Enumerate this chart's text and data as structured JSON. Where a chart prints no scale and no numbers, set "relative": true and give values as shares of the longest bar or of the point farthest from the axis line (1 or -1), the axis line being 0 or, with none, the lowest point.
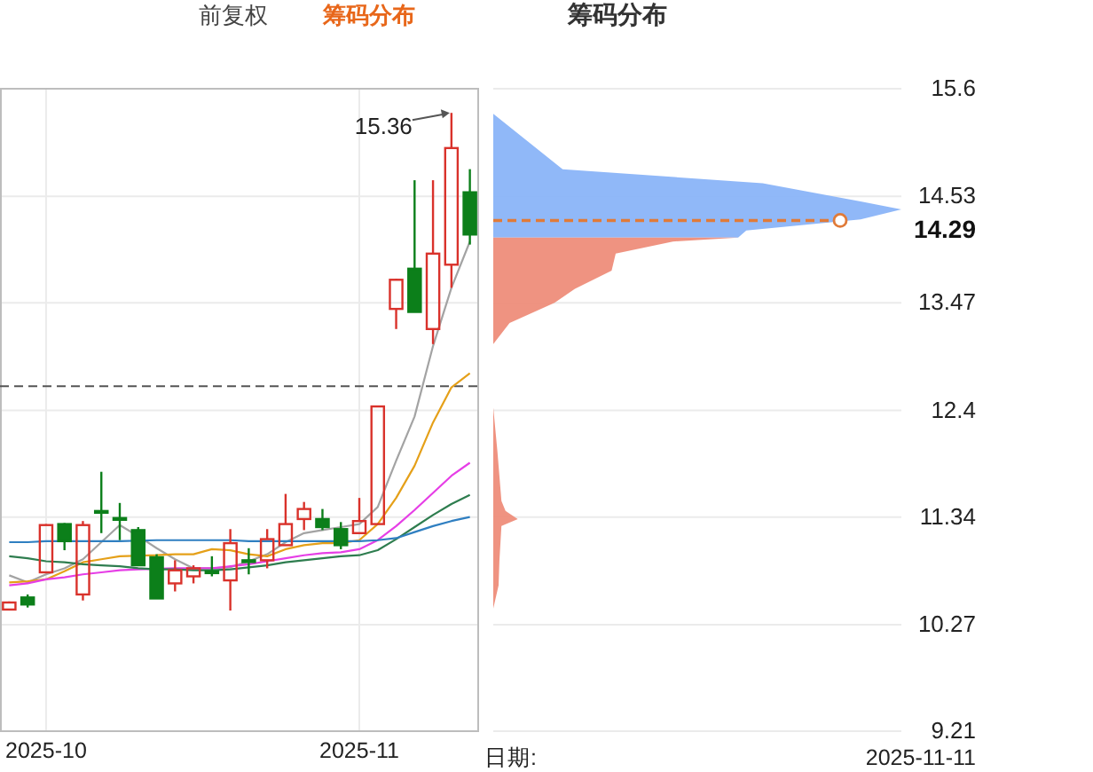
{
  "chart_data": [
    {
      "type": "candlestick",
      "categories": [
        null,
        null,
        "2025-10",
        null,
        null,
        null,
        null,
        null,
        null,
        null,
        null,
        null,
        null,
        null,
        null,
        null,
        null,
        null,
        null,
        "2025-11",
        null,
        null,
        null,
        null,
        null,
        null
      ],
      "ohlc": [
        [
          10.42,
          10.5,
          10.41,
          10.49
        ],
        [
          10.54,
          10.57,
          10.44,
          10.47
        ],
        [
          10.79,
          11.27,
          10.78,
          11.26
        ],
        [
          11.27,
          11.28,
          11.01,
          11.1
        ],
        [
          10.57,
          11.3,
          10.51,
          11.26
        ],
        [
          11.4,
          11.79,
          11.18,
          11.39
        ],
        [
          11.33,
          11.48,
          11.11,
          11.32
        ],
        [
          11.21,
          11.24,
          10.86,
          10.86
        ],
        [
          10.94,
          10.97,
          10.53,
          10.53
        ],
        [
          10.68,
          10.91,
          10.6,
          10.81
        ],
        [
          10.75,
          10.86,
          10.68,
          10.83
        ],
        [
          10.8,
          10.95,
          10.75,
          10.79
        ],
        [
          10.71,
          11.22,
          10.41,
          11.08
        ],
        [
          10.91,
          11.03,
          10.77,
          10.9
        ],
        [
          10.91,
          11.22,
          10.83,
          11.12
        ],
        [
          11.06,
          11.57,
          11.06,
          11.27
        ],
        [
          11.32,
          11.49,
          11.21,
          11.42
        ],
        [
          11.32,
          11.42,
          11.21,
          11.24
        ],
        [
          11.22,
          11.29,
          11.02,
          11.06
        ],
        [
          11.18,
          11.53,
          11.18,
          11.3
        ],
        [
          11.27,
          12.44,
          11.27,
          12.44
        ],
        [
          13.41,
          13.71,
          13.21,
          13.7
        ],
        [
          13.81,
          14.69,
          13.38,
          13.38
        ],
        [
          13.21,
          14.69,
          13.06,
          13.96
        ],
        [
          13.85,
          15.36,
          13.62,
          15.01
        ],
        [
          14.57,
          14.8,
          14.05,
          14.15
        ]
      ],
      "colors": [
        "#d9322b",
        "#0c7f1a",
        "#d9322b",
        "#0c7f1a",
        "#d9322b",
        "#0c7f1a",
        "#0c7f1a",
        "#0c7f1a",
        "#0c7f1a",
        "#d9322b",
        "#d9322b",
        "#0c7f1a",
        "#d9322b",
        "#0c7f1a",
        "#d9322b",
        "#d9322b",
        "#d9322b",
        "#0c7f1a",
        "#0c7f1a",
        "#d9322b",
        "#d9322b",
        "#d9322b",
        "#0c7f1a",
        "#d9322b",
        "#d9322b",
        "#0c7f1a"
      ],
      "series": [
        {
          "type": "line",
          "color": "#a3a3a3",
          "values": [
            10.76,
            10.69,
            10.77,
            10.83,
            10.92,
            11.09,
            11.26,
            11.15,
            11.03,
            10.92,
            10.83,
            10.83,
            10.84,
            10.9,
            10.97,
            11.09,
            11.18,
            11.21,
            11.24,
            11.27,
            11.44,
            11.9,
            12.34,
            13.04,
            13.62,
            14.08
          ]
        },
        {
          "type": "line",
          "color": "#e5a019",
          "values": [
            10.69,
            10.7,
            10.72,
            10.8,
            10.89,
            10.92,
            10.95,
            null,
            10.96,
            10.97,
            10.97,
            11.02,
            11.01,
            10.97,
            10.95,
            11.02,
            11.06,
            11.08,
            11.08,
            11.11,
            11.27,
            11.53,
            11.85,
            12.28,
            12.63,
            12.77
          ]
        },
        {
          "type": "line",
          "color": "#e63ee6",
          "values": [
            10.66,
            10.68,
            10.72,
            10.74,
            10.77,
            10.79,
            10.81,
            10.82,
            null,
            10.83,
            10.83,
            10.83,
            10.85,
            10.87,
            10.9,
            10.93,
            10.96,
            10.98,
            10.99,
            11.02,
            11.11,
            11.25,
            11.41,
            11.58,
            11.75,
            11.88
          ]
        },
        {
          "type": "line",
          "color": "#2e7d4f",
          "values": [
            10.95,
            10.93,
            10.9,
            10.89,
            10.87,
            10.86,
            10.85,
            10.83,
            10.82,
            10.82,
            10.81,
            10.81,
            10.82,
            10.84,
            10.86,
            10.89,
            10.91,
            10.93,
            10.95,
            10.96,
            11.01,
            11.12,
            11.24,
            11.36,
            11.47,
            11.56
          ]
        },
        {
          "type": "line",
          "color": "#2f7fc1",
          "values": [
            11.09,
            11.09,
            11.1,
            11.1,
            11.1,
            11.1,
            11.1,
            null,
            11.11,
            11.11,
            11.11,
            11.11,
            11.11,
            11.1,
            11.1,
            11.1,
            11.1,
            11.1,
            11.1,
            11.1,
            11.11,
            11.13,
            11.19,
            11.25,
            11.3,
            11.34
          ]
        }
      ],
      "ylim": [
        9.21,
        15.6
      ],
      "yticks": [
        9.21,
        10.27,
        11.34,
        12.4,
        13.47,
        14.53,
        15.6
      ],
      "tick_labels": "x",
      "grid": true,
      "ref_lines": [
        {
          "axis": "y",
          "value": 12.64,
          "color": "#555555",
          "line_style": "dashed"
        }
      ],
      "annotations": [
        "15.36",
        "前复权",
        "筹码分布"
      ]
    },
    {
      "type": "area",
      "orientation": "horizontal",
      "relative": true,
      "title": "筹码分布",
      "series": [
        {
          "color": "#8ab4f8",
          "x": [
            15.35,
            14.8,
            14.66,
            14.48,
            14.4,
            14.3,
            14.19,
            14.12
          ],
          "values": [
            0,
            0.17,
            0.66,
            0.9,
            1,
            0.9,
            0.62,
            0.6
          ]
        },
        {
          "color": "#ee8d7a",
          "x": [
            14.12,
            14.08,
            13.96,
            13.79,
            13.61,
            13.47,
            13.27,
            13.06
          ],
          "values": [
            0.6,
            0.44,
            0.3,
            0.29,
            0.2,
            0.15,
            0.04,
            0
          ]
        },
        {
          "color": "#ee8d7a",
          "x": [
            12.43,
            12.0,
            11.5,
            11.4,
            11.32,
            11.25,
            10.9,
            10.66,
            10.43
          ],
          "values": [
            0,
            0.01,
            0.02,
            0.03,
            0.06,
            0.02,
            0.015,
            0.013,
            0
          ]
        }
      ],
      "ylim": [
        9.21,
        15.6
      ],
      "yticks": [
        9.21,
        10.27,
        11.34,
        12.4,
        13.47,
        14.53,
        15.6
      ],
      "tick_labels": "y",
      "grid": "y",
      "ref_lines": [
        {
          "axis": "y",
          "value": 14.29,
          "label": "14.29",
          "color": "#e07b39",
          "line_style": "dashed"
        }
      ],
      "annotations": [
        "日期:",
        "2025-11-11"
      ]
    }
  ]
}
